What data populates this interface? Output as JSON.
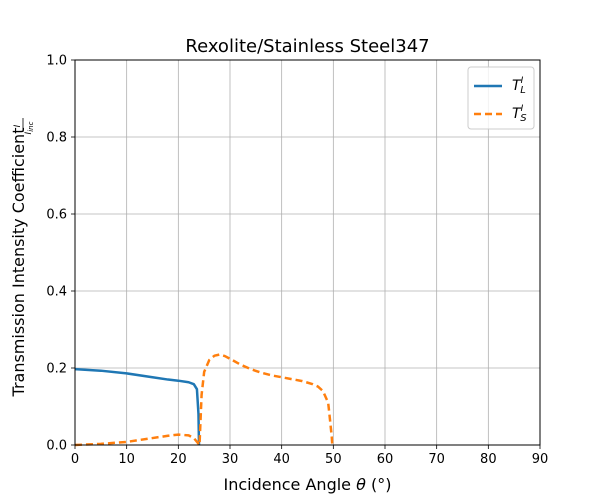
{
  "chart_data": {
    "type": "line",
    "title": "Rexolite/Stainless Steel347",
    "xlabel": "Incidence Angle θ (°)",
    "ylabel": "Transmission Intensity Coefficient",
    "ylabel_fraction": {
      "numerator": "I",
      "denominator": "I",
      "denominator_subscript": "inc"
    },
    "xlim": [
      0,
      90
    ],
    "ylim": [
      0,
      1.0
    ],
    "xticks": [
      "0",
      "10",
      "20",
      "30",
      "40",
      "50",
      "60",
      "70",
      "80",
      "90"
    ],
    "yticks": [
      "0.0",
      "0.2",
      "0.4",
      "0.6",
      "0.8",
      "1.0"
    ],
    "grid": true,
    "legend_position": "top-right",
    "series": [
      {
        "name": "T_L^I",
        "legend_label": {
          "base": "T",
          "sup": "I",
          "sub": "L"
        },
        "color": "#1f77b4",
        "line_style": "solid",
        "x": [
          0,
          5,
          10,
          15,
          18,
          20,
          22,
          23,
          23.6,
          23.9,
          24.0
        ],
        "y": [
          0.197,
          0.193,
          0.186,
          0.176,
          0.17,
          0.167,
          0.163,
          0.158,
          0.145,
          0.08,
          0.0
        ]
      },
      {
        "name": "T_S^I",
        "legend_label": {
          "base": "T",
          "sup": "I",
          "sub": "S"
        },
        "color": "#ff7f0e",
        "line_style": "dashed",
        "x": [
          0,
          5,
          10,
          15,
          18,
          20,
          22,
          23,
          23.8,
          24.1,
          24.5,
          25,
          26,
          27,
          28,
          29,
          30,
          32,
          34,
          36,
          38,
          40,
          42,
          44,
          46,
          47,
          48,
          49,
          49.4,
          49.7,
          49.8
        ],
        "y": [
          0.0,
          0.003,
          0.008,
          0.018,
          0.024,
          0.027,
          0.025,
          0.018,
          0.005,
          0.0,
          0.13,
          0.19,
          0.221,
          0.232,
          0.235,
          0.231,
          0.224,
          0.209,
          0.197,
          0.188,
          0.181,
          0.176,
          0.171,
          0.166,
          0.158,
          0.152,
          0.14,
          0.11,
          0.06,
          0.02,
          0.0
        ]
      }
    ]
  }
}
